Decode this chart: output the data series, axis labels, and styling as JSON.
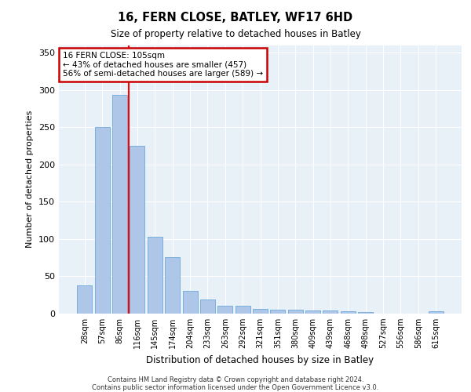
{
  "title1": "16, FERN CLOSE, BATLEY, WF17 6HD",
  "title2": "Size of property relative to detached houses in Batley",
  "xlabel": "Distribution of detached houses by size in Batley",
  "ylabel": "Number of detached properties",
  "bar_labels": [
    "28sqm",
    "57sqm",
    "86sqm",
    "116sqm",
    "145sqm",
    "174sqm",
    "204sqm",
    "233sqm",
    "263sqm",
    "292sqm",
    "321sqm",
    "351sqm",
    "380sqm",
    "409sqm",
    "439sqm",
    "468sqm",
    "498sqm",
    "527sqm",
    "556sqm",
    "586sqm",
    "615sqm"
  ],
  "bar_values": [
    38,
    250,
    293,
    225,
    103,
    76,
    30,
    19,
    10,
    10,
    6,
    5,
    5,
    4,
    4,
    3,
    2,
    0,
    0,
    0,
    3
  ],
  "bar_color": "#aec6e8",
  "bar_edge_color": "#5a9fd4",
  "background_color": "#e8f0f8",
  "grid_color": "#ffffff",
  "red_line_index": 2,
  "annotation_text": "16 FERN CLOSE: 105sqm\n← 43% of detached houses are smaller (457)\n56% of semi-detached houses are larger (589) →",
  "annotation_box_color": "#ffffff",
  "annotation_box_edge": "#cc0000",
  "ylim": [
    0,
    360
  ],
  "yticks": [
    0,
    50,
    100,
    150,
    200,
    250,
    300,
    350
  ],
  "footer1": "Contains HM Land Registry data © Crown copyright and database right 2024.",
  "footer2": "Contains public sector information licensed under the Open Government Licence v3.0."
}
